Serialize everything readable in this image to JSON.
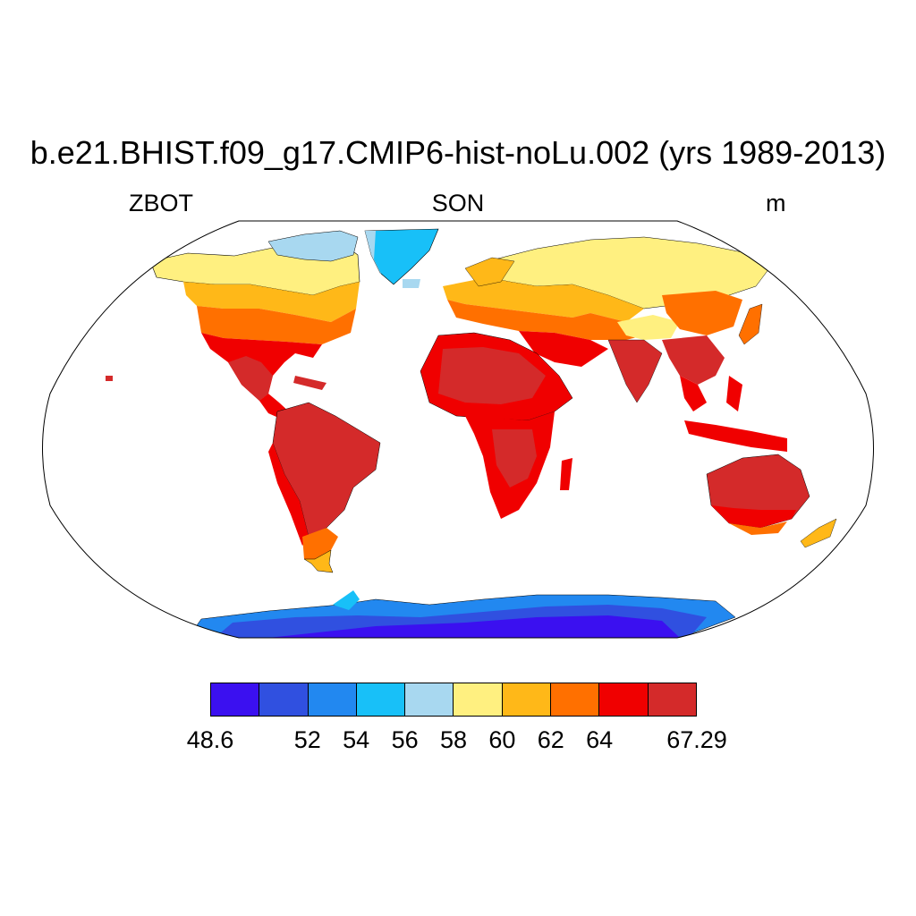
{
  "title": "b.e21.BHIST.f09_g17.CMIP6-hist-noLu.002 (yrs 1989-2013)",
  "subtitle": {
    "left": "ZBOT",
    "center": "SON",
    "right": "m"
  },
  "map": {
    "projection": "Robinson",
    "variable": "ZBOT",
    "units": "m",
    "season": "SON"
  },
  "colorbar": {
    "colors": [
      "#3b10f0",
      "#3050e0",
      "#2288f0",
      "#18c0f8",
      "#a8d8f0",
      "#fff080",
      "#ffb818",
      "#ff7000",
      "#f00000",
      "#d42a2a"
    ],
    "tick_labels": [
      "48.6",
      "52",
      "54",
      "56",
      "58",
      "60",
      "62",
      "64",
      "67.29"
    ],
    "tick_positions": [
      0,
      2,
      3,
      4,
      5,
      6,
      7,
      8,
      10
    ]
  }
}
